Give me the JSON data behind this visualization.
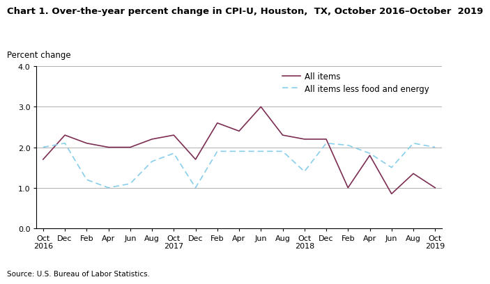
{
  "title": "Chart 1. Over-the-year percent change in CPI-U, Houston,  TX, October 2016–October  2019",
  "ylabel": "Percent change",
  "source": "Source: U.S. Bureau of Labor Statistics.",
  "ylim": [
    0.0,
    4.0
  ],
  "yticks": [
    0.0,
    1.0,
    2.0,
    3.0,
    4.0
  ],
  "all_items_y": [
    1.7,
    2.3,
    2.1,
    2.0,
    2.0,
    2.2,
    2.3,
    1.7,
    2.6,
    2.4,
    3.0,
    2.3,
    2.2,
    2.2,
    1.0,
    1.8,
    0.85,
    1.35,
    1.0
  ],
  "all_less_y": [
    2.0,
    2.1,
    1.2,
    1.0,
    1.1,
    1.65,
    1.85,
    1.0,
    1.9,
    1.9,
    1.9,
    1.9,
    1.4,
    2.1,
    2.05,
    1.85,
    1.5,
    2.1,
    2.0
  ],
  "tick_labels": [
    "Oct\n2016",
    "Dec",
    "Feb",
    "Apr",
    "Jun",
    "Aug",
    "Oct\n2017",
    "Dec",
    "Feb",
    "Apr",
    "Jun",
    "Aug",
    "Oct\n2018",
    "Dec",
    "Feb",
    "Apr",
    "Jun",
    "Aug",
    "Oct\n2019"
  ],
  "color_all_items": "#7B2D52",
  "color_less": "#87CEEB",
  "legend_labels": [
    "All items",
    "All items less food and energy"
  ],
  "title_fontsize": 9.5,
  "label_fontsize": 8.5,
  "tick_fontsize": 8,
  "source_fontsize": 7.5
}
